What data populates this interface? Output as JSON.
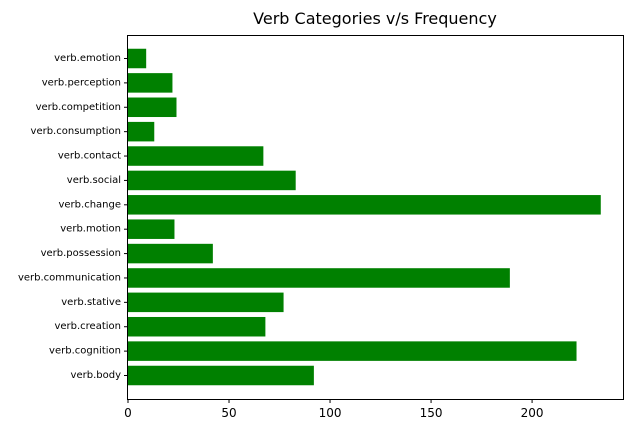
{
  "chart_data": {
    "type": "bar",
    "orientation": "horizontal",
    "title": "Verb Categories v/s Frequency",
    "xlabel": "",
    "ylabel": "",
    "categories": [
      "verb.body",
      "verb.cognition",
      "verb.creation",
      "verb.stative",
      "verb.communication",
      "verb.possession",
      "verb.motion",
      "verb.change",
      "verb.social",
      "verb.contact",
      "verb.consumption",
      "verb.competition",
      "verb.perception",
      "verb.emotion"
    ],
    "values": [
      92,
      222,
      68,
      77,
      189,
      42,
      23,
      234,
      83,
      67,
      13,
      24,
      22,
      9
    ],
    "xlim": [
      0,
      245
    ],
    "xticks": [
      0,
      50,
      100,
      150,
      200
    ],
    "bar_color": "#008000",
    "grid": false,
    "legend": "none"
  }
}
